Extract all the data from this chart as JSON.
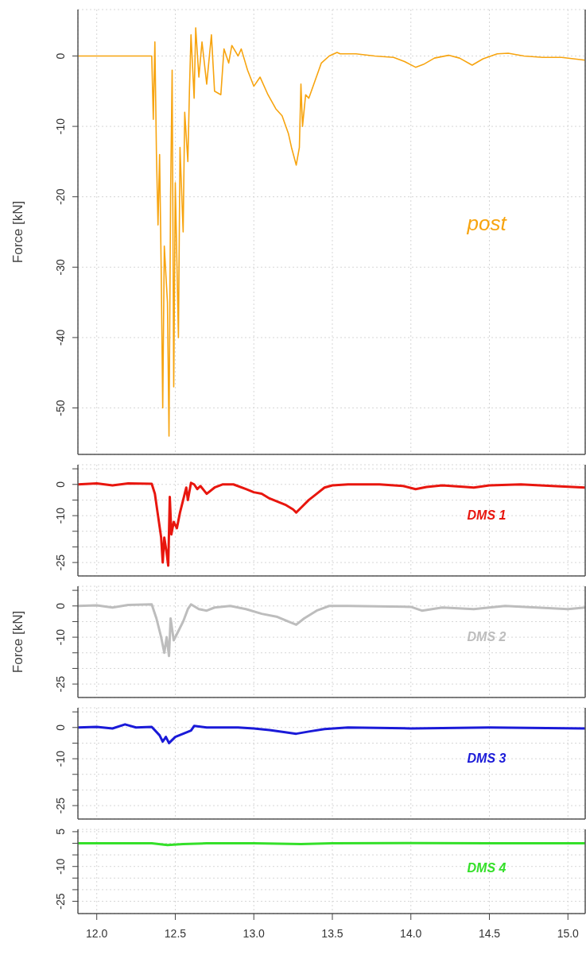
{
  "chart_data": [
    {
      "type": "line",
      "ylabel": "Force [kN]",
      "xlim": [
        11.88,
        15.11
      ],
      "xticks": [
        12.0,
        12.5,
        13.0,
        13.5,
        14.0,
        14.5,
        15.0
      ],
      "ylim": [
        -56.6,
        6.6
      ],
      "yticks": [
        0,
        -10,
        -20,
        -30,
        -40,
        -50
      ],
      "grid": true,
      "tick_labels": "y",
      "x": [
        11.88,
        12.1,
        12.34,
        12.35,
        12.36,
        12.37,
        12.38,
        12.39,
        12.4,
        12.41,
        12.42,
        12.43,
        12.45,
        12.46,
        12.47,
        12.48,
        12.49,
        12.5,
        12.52,
        12.53,
        12.55,
        12.56,
        12.58,
        12.59,
        12.6,
        12.62,
        12.63,
        12.65,
        12.67,
        12.7,
        12.73,
        12.75,
        12.79,
        12.81,
        12.84,
        12.86,
        12.9,
        12.92,
        12.96,
        13.0,
        13.04,
        13.09,
        13.14,
        13.18,
        13.22,
        13.24,
        13.27,
        13.29,
        13.3,
        13.31,
        13.33,
        13.35,
        13.39,
        13.43,
        13.48,
        13.53,
        13.55,
        13.65,
        13.77,
        13.89,
        13.96,
        14.03,
        14.08,
        14.15,
        14.24,
        14.31,
        14.39,
        14.46,
        14.55,
        14.62,
        14.72,
        14.84,
        14.96,
        15.11
      ],
      "series": [
        {
          "name": "post",
          "color": "#f7a40f",
          "values": [
            0,
            0,
            0,
            0,
            -9,
            2,
            -14,
            -24,
            -14,
            -30,
            -50,
            -27,
            -35,
            -54,
            -20,
            -2,
            -47,
            -18,
            -40,
            -13,
            -25,
            -8,
            -15,
            -5,
            3,
            -6,
            4,
            -3,
            2,
            -4,
            3,
            -5,
            -5.5,
            1,
            -1,
            1.5,
            0,
            1,
            -2,
            -4.3,
            -3,
            -5.5,
            -7.5,
            -8.5,
            -11,
            -13,
            -15.5,
            -13,
            -4,
            -10,
            -5.5,
            -6,
            -3.5,
            -1,
            0,
            0.5,
            0.3,
            0.3,
            0,
            -0.2,
            -0.8,
            -1.6,
            -1.2,
            -0.3,
            0.1,
            -0.3,
            -1.3,
            -0.4,
            0.3,
            0.4,
            0,
            -0.2,
            -0.2,
            -0.6
          ]
        }
      ]
    },
    {
      "type": "line",
      "xlim": [
        11.88,
        15.11
      ],
      "xticks": [
        12.0,
        12.5,
        13.0,
        13.5,
        14.0,
        14.5,
        15.0
      ],
      "ylim": [
        -29.3,
        6.3
      ],
      "yticks": [
        {
          "value": 5,
          "label": null
        },
        0,
        {
          "value": -5,
          "label": null
        },
        -10,
        {
          "value": -15,
          "label": null
        },
        {
          "value": -20,
          "label": null
        },
        -25
      ],
      "grid": true,
      "tick_labels": "y",
      "x": [
        11.88,
        12.0,
        12.1,
        12.2,
        12.35,
        12.37,
        12.39,
        12.41,
        12.42,
        12.43,
        12.445,
        12.455,
        12.465,
        12.475,
        12.49,
        12.51,
        12.53,
        12.55,
        12.57,
        12.58,
        12.6,
        12.62,
        12.64,
        12.66,
        12.7,
        12.75,
        12.8,
        12.87,
        12.95,
        13.0,
        13.05,
        13.1,
        13.15,
        13.2,
        13.25,
        13.27,
        13.3,
        13.35,
        13.4,
        13.45,
        13.5,
        13.6,
        13.8,
        13.95,
        14.03,
        14.1,
        14.2,
        14.35,
        14.4,
        14.5,
        14.7,
        14.9,
        15.11
      ],
      "series": [
        {
          "name": "DMS 1",
          "color": "#e8160e",
          "values": [
            0,
            0.3,
            -0.3,
            0.3,
            0.2,
            -3,
            -10,
            -17,
            -25,
            -17,
            -22,
            -26,
            -4,
            -16,
            -12,
            -14,
            -9,
            -5,
            -1,
            -5,
            0.5,
            0,
            -1.5,
            -0.5,
            -3,
            -1,
            0,
            0,
            -1.5,
            -2.5,
            -3,
            -4.5,
            -5.5,
            -6.5,
            -8,
            -9,
            -7.5,
            -5,
            -3,
            -1,
            -0.3,
            0,
            0,
            -0.5,
            -1.5,
            -0.8,
            -0.3,
            -0.8,
            -1,
            -0.3,
            0,
            -0.5,
            -1
          ]
        }
      ]
    },
    {
      "type": "line",
      "ylabel": "Force [kN]",
      "xlim": [
        11.88,
        15.11
      ],
      "xticks": [
        12.0,
        12.5,
        13.0,
        13.5,
        14.0,
        14.5,
        15.0
      ],
      "ylim": [
        -29.3,
        6.3
      ],
      "yticks": [
        {
          "value": 5,
          "label": null
        },
        0,
        {
          "value": -5,
          "label": null
        },
        -10,
        {
          "value": -15,
          "label": null
        },
        {
          "value": -20,
          "label": null
        },
        -25
      ],
      "grid": true,
      "tick_labels": "y",
      "x": [
        11.88,
        12.0,
        12.1,
        12.2,
        12.35,
        12.38,
        12.41,
        12.43,
        12.445,
        12.46,
        12.47,
        12.49,
        12.52,
        12.55,
        12.58,
        12.6,
        12.65,
        12.7,
        12.75,
        12.85,
        12.95,
        13.05,
        13.15,
        13.22,
        13.27,
        13.32,
        13.4,
        13.48,
        13.6,
        14.0,
        14.07,
        14.2,
        14.4,
        14.6,
        14.8,
        15.0,
        15.11
      ],
      "series": [
        {
          "name": "DMS 2",
          "color": "#bdbdbd",
          "values": [
            0,
            0.2,
            -0.5,
            0.3,
            0.5,
            -4,
            -10,
            -15,
            -10,
            -16,
            -4,
            -11,
            -8,
            -5,
            -1,
            0.5,
            -1,
            -1.5,
            -0.5,
            0,
            -1,
            -2.5,
            -3.5,
            -5,
            -6,
            -4,
            -1.5,
            0,
            0,
            -0.3,
            -1.5,
            -0.5,
            -1,
            0,
            -0.5,
            -1,
            -0.5
          ]
        }
      ]
    },
    {
      "type": "line",
      "xlim": [
        11.88,
        15.11
      ],
      "xticks": [
        12.0,
        12.5,
        13.0,
        13.5,
        14.0,
        14.5,
        15.0
      ],
      "ylim": [
        -29.3,
        6.3
      ],
      "yticks": [
        {
          "value": 5,
          "label": null
        },
        0,
        {
          "value": -5,
          "label": null
        },
        -10,
        {
          "value": -15,
          "label": null
        },
        {
          "value": -20,
          "label": null
        },
        -25
      ],
      "grid": true,
      "tick_labels": "y",
      "x": [
        11.88,
        12.0,
        12.1,
        12.18,
        12.25,
        12.35,
        12.4,
        12.42,
        12.44,
        12.46,
        12.5,
        12.55,
        12.6,
        12.62,
        12.7,
        12.9,
        13.0,
        13.1,
        13.2,
        13.27,
        13.35,
        13.45,
        13.6,
        14.0,
        14.5,
        15.11
      ],
      "series": [
        {
          "name": "DMS 3",
          "color": "#1a1ad8",
          "values": [
            0,
            0.2,
            -0.3,
            1,
            0,
            0.2,
            -2.5,
            -4.5,
            -3,
            -5,
            -3,
            -2,
            -1,
            0.5,
            0,
            0,
            -0.3,
            -0.8,
            -1.5,
            -2,
            -1.3,
            -0.5,
            0,
            -0.3,
            0,
            -0.3
          ]
        }
      ]
    },
    {
      "type": "line",
      "xlim": [
        11.88,
        15.11
      ],
      "xticks": [
        {
          "value": 12,
          "label": "12.0"
        },
        12.5,
        {
          "value": 13,
          "label": "13.0"
        },
        13.5,
        {
          "value": 14,
          "label": "14.0"
        },
        14.5,
        {
          "value": 15,
          "label": "15.0"
        }
      ],
      "ylim": [
        -30.3,
        6
      ],
      "yticks": [
        5,
        {
          "value": 0,
          "label": null
        },
        {
          "value": -5,
          "label": null
        },
        -10,
        {
          "value": -15,
          "label": null
        },
        {
          "value": -20,
          "label": null
        },
        -25
      ],
      "grid": true,
      "x": [
        11.88,
        12.2,
        12.35,
        12.45,
        12.55,
        12.7,
        13.0,
        13.3,
        13.5,
        14.0,
        14.5,
        15.11
      ],
      "series": [
        {
          "name": "DMS 4",
          "color": "#35e02a",
          "values": [
            0,
            0,
            0,
            -0.8,
            -0.3,
            0,
            0,
            -0.3,
            0,
            0.1,
            0,
            0
          ]
        }
      ]
    }
  ]
}
